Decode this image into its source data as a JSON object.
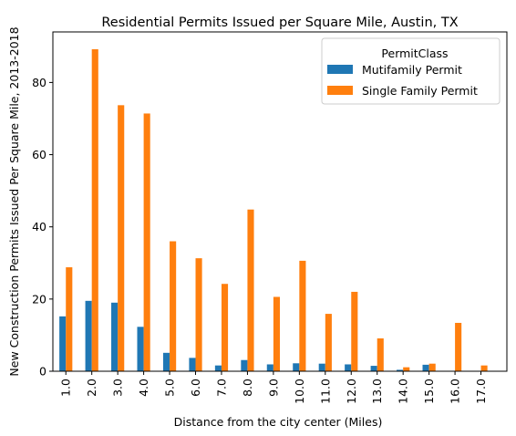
{
  "chart_data": {
    "type": "bar",
    "title": "Residential Permits Issued per Square Mile, Austin, TX",
    "xlabel": "Distance from the city center (Miles)",
    "ylabel": "New Construction Permits Issued Per Square Mile, 2013-2018",
    "categories": [
      "1.0",
      "2.0",
      "3.0",
      "4.0",
      "5.0",
      "6.0",
      "7.0",
      "8.0",
      "9.0",
      "10.0",
      "11.0",
      "12.0",
      "13.0",
      "14.0",
      "15.0",
      "16.0",
      "17.0"
    ],
    "ylim": [
      0,
      94
    ],
    "yticks": [
      0,
      20,
      40,
      60,
      80
    ],
    "legend": {
      "title": "PermitClass",
      "placement": "top-right"
    },
    "series": [
      {
        "name": "Mutifamily Permit",
        "color": "#1f77b4",
        "values": [
          15.2,
          19.5,
          19.0,
          12.3,
          5.1,
          3.7,
          1.6,
          3.1,
          1.9,
          2.2,
          2.1,
          1.9,
          1.5,
          0.4,
          1.8,
          0.1,
          0.0
        ]
      },
      {
        "name": "Single Family Permit",
        "color": "#ff7f0e",
        "values": [
          28.8,
          89.2,
          73.7,
          71.4,
          36.0,
          31.3,
          24.2,
          44.8,
          20.6,
          30.6,
          15.9,
          22.0,
          9.1,
          1.1,
          2.1,
          13.4,
          1.6
        ]
      }
    ]
  }
}
